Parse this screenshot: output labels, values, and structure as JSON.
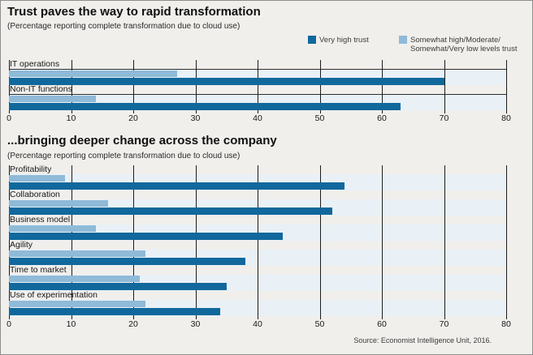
{
  "colors": {
    "background": "#f0efec",
    "very_high_trust": "#11689c",
    "somewhat_trust": "#8fbad8",
    "row_track": "#e9f1f7",
    "gridline": "#1c1c1c"
  },
  "legend": {
    "items": [
      {
        "label": "Very high trust",
        "color": "#11689c"
      },
      {
        "label_lines": [
          "Somewhat high/Moderate/",
          "Somewhat/Very low levels trust"
        ],
        "color": "#8fbad8"
      }
    ]
  },
  "chart_data": [
    {
      "type": "bar",
      "orientation": "horizontal",
      "title": "Trust paves the way to rapid transformation",
      "subtitle": "(Percentage reporting complete transformation due to cloud use)",
      "categories": [
        "IT operations",
        "Non-IT functions"
      ],
      "series": [
        {
          "name": "Very high trust",
          "color": "#11689c",
          "values": [
            70,
            63
          ]
        },
        {
          "name": "Somewhat high/Moderate/Somewhat/Very low levels trust",
          "color": "#8fbad8",
          "values": [
            27,
            14
          ]
        }
      ],
      "xlim": [
        0,
        80
      ],
      "xticks": [
        0,
        10,
        20,
        30,
        40,
        50,
        60,
        70,
        80
      ],
      "grid": "vertical",
      "legend_position": "top-right"
    },
    {
      "type": "bar",
      "orientation": "horizontal",
      "title": "...bringing deeper change across the company",
      "subtitle": "(Percentage reporting complete transformation due to cloud use)",
      "categories": [
        "Profitability",
        "Collaboration",
        "Business model",
        "Agility",
        "Time to market",
        "Use of experimentation"
      ],
      "series": [
        {
          "name": "Very high trust",
          "color": "#11689c",
          "values": [
            54,
            52,
            44,
            38,
            35,
            34
          ]
        },
        {
          "name": "Somewhat high/Moderate/Somewhat/Very low levels trust",
          "color": "#8fbad8",
          "values": [
            9,
            16,
            14,
            22,
            21,
            22
          ]
        }
      ],
      "xlim": [
        0,
        80
      ],
      "xticks": [
        0,
        10,
        20,
        30,
        40,
        50,
        60,
        70,
        80
      ],
      "grid": "vertical"
    }
  ],
  "source": "Source: Economist Intelligence Unit, 2016."
}
